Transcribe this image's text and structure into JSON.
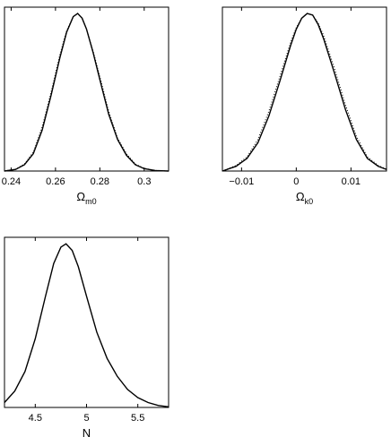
{
  "chart_data": [
    {
      "type": "line",
      "xlabel": "Ω",
      "xlabel_sub": "m0",
      "xlim": [
        0.237,
        0.311
      ],
      "ylim": [
        0,
        1.04
      ],
      "xticks": [
        0.24,
        0.26,
        0.28,
        0.3
      ],
      "xtick_labels": [
        "0.24",
        "0.26",
        "0.28",
        "0.3"
      ],
      "yticks": [],
      "grid": false,
      "series": [
        {
          "style": "solid",
          "color": "#000000",
          "x": [
            0.237,
            0.242,
            0.246,
            0.25,
            0.254,
            0.258,
            0.262,
            0.265,
            0.268,
            0.27,
            0.272,
            0.274,
            0.277,
            0.28,
            0.284,
            0.288,
            0.292,
            0.296,
            0.3,
            0.305,
            0.311
          ],
          "y": [
            0.0,
            0.01,
            0.04,
            0.11,
            0.26,
            0.48,
            0.72,
            0.88,
            0.98,
            1.0,
            0.97,
            0.9,
            0.75,
            0.58,
            0.36,
            0.2,
            0.1,
            0.04,
            0.015,
            0.003,
            0.0
          ]
        },
        {
          "style": "dotted",
          "color": "#000000",
          "x": [
            0.237,
            0.242,
            0.246,
            0.25,
            0.254,
            0.258,
            0.262,
            0.265,
            0.268,
            0.27,
            0.272,
            0.274,
            0.277,
            0.28,
            0.284,
            0.288,
            0.292,
            0.296,
            0.3,
            0.305,
            0.311
          ],
          "y": [
            0.0,
            0.012,
            0.045,
            0.12,
            0.28,
            0.5,
            0.74,
            0.89,
            0.98,
            1.0,
            0.97,
            0.9,
            0.76,
            0.6,
            0.38,
            0.21,
            0.11,
            0.045,
            0.017,
            0.004,
            0.0
          ]
        }
      ]
    },
    {
      "type": "line",
      "xlabel": "Ω",
      "xlabel_sub": "k0",
      "xlim": [
        -0.0135,
        0.0165
      ],
      "ylim": [
        0,
        1.04
      ],
      "xticks": [
        -0.01,
        0,
        0.01
      ],
      "xtick_labels": [
        "−0.01",
        "0",
        "0.01"
      ],
      "yticks": [],
      "grid": false,
      "series": [
        {
          "style": "solid",
          "color": "#000000",
          "x": [
            -0.0135,
            -0.011,
            -0.009,
            -0.007,
            -0.005,
            -0.003,
            -0.001,
            0.0,
            0.001,
            0.002,
            0.003,
            0.004,
            0.005,
            0.007,
            0.009,
            0.011,
            0.013,
            0.015,
            0.0165
          ],
          "y": [
            0.0,
            0.03,
            0.08,
            0.18,
            0.35,
            0.57,
            0.8,
            0.9,
            0.97,
            1.0,
            0.99,
            0.93,
            0.84,
            0.62,
            0.39,
            0.2,
            0.08,
            0.03,
            0.01
          ]
        },
        {
          "style": "dotted",
          "color": "#000000",
          "x": [
            -0.0135,
            -0.011,
            -0.009,
            -0.007,
            -0.005,
            -0.003,
            -0.001,
            0.0,
            0.001,
            0.002,
            0.003,
            0.004,
            0.005,
            0.007,
            0.009,
            0.011,
            0.013,
            0.015,
            0.0165
          ],
          "y": [
            0.0,
            0.035,
            0.09,
            0.2,
            0.38,
            0.6,
            0.82,
            0.91,
            0.97,
            1.0,
            0.99,
            0.94,
            0.86,
            0.65,
            0.42,
            0.22,
            0.09,
            0.035,
            0.012
          ]
        }
      ]
    },
    {
      "type": "line",
      "xlabel": "N",
      "xlabel_sub": "",
      "xlim": [
        4.2,
        5.8
      ],
      "ylim": [
        0,
        1.04
      ],
      "xticks": [
        4.5,
        5,
        5.5
      ],
      "xtick_labels": [
        "4.5",
        "5",
        "5.5"
      ],
      "yticks": [],
      "grid": false,
      "series": [
        {
          "style": "solid",
          "color": "#000000",
          "x": [
            4.2,
            4.3,
            4.4,
            4.5,
            4.6,
            4.68,
            4.75,
            4.8,
            4.86,
            4.92,
            5.0,
            5.1,
            5.2,
            5.3,
            5.4,
            5.5,
            5.6,
            5.7,
            5.8
          ],
          "y": [
            0.03,
            0.1,
            0.22,
            0.42,
            0.68,
            0.88,
            0.98,
            1.0,
            0.96,
            0.86,
            0.68,
            0.46,
            0.3,
            0.19,
            0.11,
            0.06,
            0.03,
            0.012,
            0.004
          ]
        }
      ]
    }
  ]
}
